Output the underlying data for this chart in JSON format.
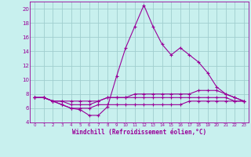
{
  "xlabel": "Windchill (Refroidissement éolien,°C)",
  "xlim": [
    -0.5,
    23.5
  ],
  "ylim": [
    4,
    21
  ],
  "yticks": [
    4,
    6,
    8,
    10,
    12,
    14,
    16,
    18,
    20
  ],
  "xticks": [
    0,
    1,
    2,
    3,
    4,
    5,
    6,
    7,
    8,
    9,
    10,
    11,
    12,
    13,
    14,
    15,
    16,
    17,
    18,
    19,
    20,
    21,
    22,
    23
  ],
  "background_color": "#c8f0ee",
  "grid_color": "#a0cece",
  "line_color": "#990099",
  "line1_x": [
    0,
    1,
    2,
    3,
    4,
    5,
    6,
    7,
    8,
    9,
    10,
    11,
    12,
    13,
    14,
    15,
    16,
    17,
    18,
    19,
    20,
    21,
    22,
    23
  ],
  "line1_y": [
    7.5,
    7.5,
    7.0,
    6.5,
    6.0,
    5.8,
    5.0,
    5.0,
    6.2,
    10.5,
    14.5,
    17.5,
    20.5,
    17.5,
    15.0,
    13.5,
    14.5,
    13.5,
    12.5,
    11.0,
    9.0,
    8.0,
    7.5,
    7.0
  ],
  "line2_x": [
    0,
    1,
    2,
    3,
    4,
    5,
    6,
    7,
    8,
    9,
    10,
    11,
    12,
    13,
    14,
    15,
    16,
    17,
    18,
    19,
    20,
    21,
    22,
    23
  ],
  "line2_y": [
    7.5,
    7.5,
    7.0,
    7.0,
    6.5,
    6.5,
    6.5,
    7.0,
    7.5,
    7.5,
    7.5,
    8.0,
    8.0,
    8.0,
    8.0,
    8.0,
    8.0,
    8.0,
    8.5,
    8.5,
    8.5,
    8.0,
    7.5,
    7.0
  ],
  "line3_x": [
    0,
    1,
    2,
    3,
    4,
    5,
    6,
    7,
    8,
    9,
    10,
    11,
    12,
    13,
    14,
    15,
    16,
    17,
    18,
    19,
    20,
    21,
    22,
    23
  ],
  "line3_y": [
    7.5,
    7.5,
    7.0,
    6.5,
    6.0,
    6.0,
    6.0,
    6.5,
    6.5,
    6.5,
    6.5,
    6.5,
    6.5,
    6.5,
    6.5,
    6.5,
    6.5,
    7.0,
    7.0,
    7.0,
    7.0,
    7.0,
    7.0,
    7.0
  ],
  "line4_x": [
    0,
    1,
    2,
    3,
    4,
    5,
    6,
    7,
    8,
    9,
    10,
    11,
    12,
    13,
    14,
    15,
    16,
    17,
    18,
    19,
    20,
    21,
    22,
    23
  ],
  "line4_y": [
    7.5,
    7.5,
    7.0,
    7.0,
    7.0,
    7.0,
    7.0,
    7.0,
    7.5,
    7.5,
    7.5,
    7.5,
    7.5,
    7.5,
    7.5,
    7.5,
    7.5,
    7.5,
    7.5,
    7.5,
    7.5,
    7.5,
    7.0,
    7.0
  ]
}
